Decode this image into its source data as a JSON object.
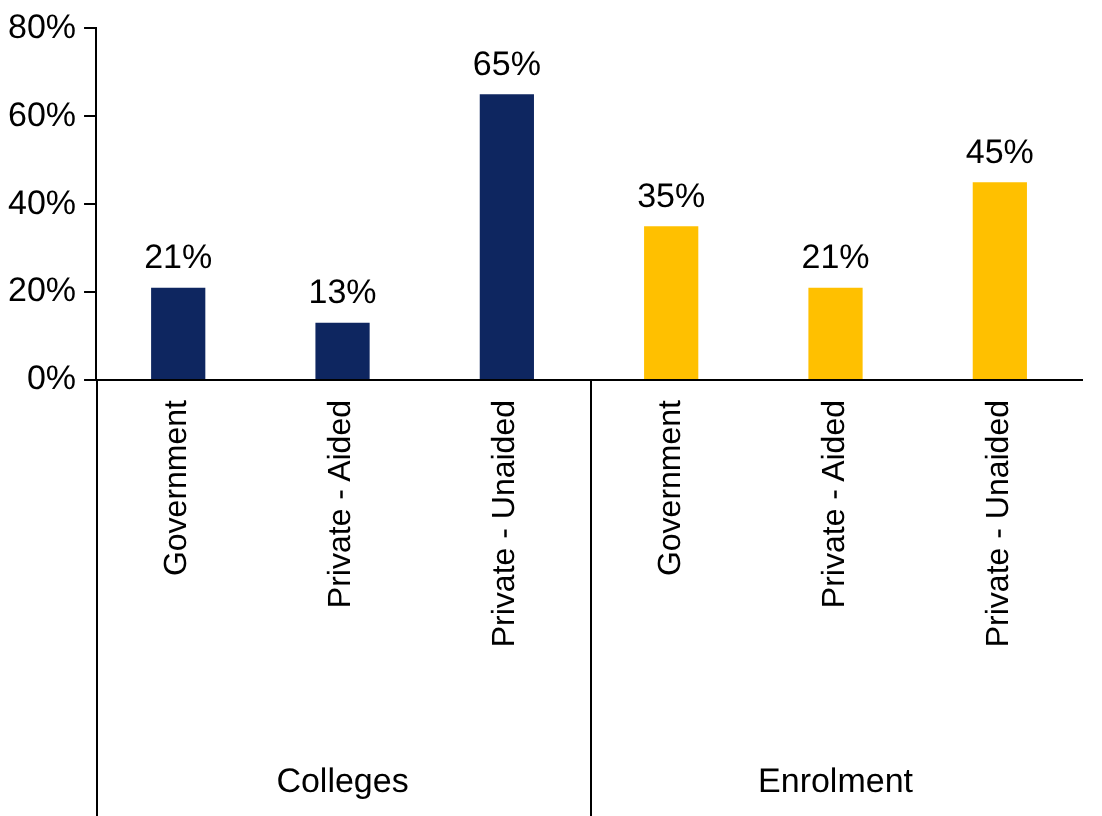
{
  "chart_data": {
    "type": "bar",
    "categories": [
      "Government",
      "Private - Aided",
      "Private - Unaided",
      "Government",
      "Private - Aided",
      "Private - Unaided"
    ],
    "values": [
      21,
      13,
      65,
      35,
      21,
      45
    ],
    "colors": [
      "#0e2660",
      "#0e2660",
      "#0e2660",
      "#ffc000",
      "#ffc000",
      "#ffc000"
    ],
    "value_labels": [
      "21%",
      "13%",
      "65%",
      "35%",
      "21%",
      "45%"
    ],
    "annotations": [
      "Colleges",
      "Enrolment"
    ],
    "ylim": [
      0,
      80
    ],
    "yticks": [
      {
        "value": 0,
        "label": "0%"
      },
      {
        "value": 20,
        "label": "20%"
      },
      {
        "value": 40,
        "label": "40%"
      },
      {
        "value": 60,
        "label": "60%"
      },
      {
        "value": 80,
        "label": "80%"
      }
    ],
    "grid": false,
    "legend": false
  }
}
